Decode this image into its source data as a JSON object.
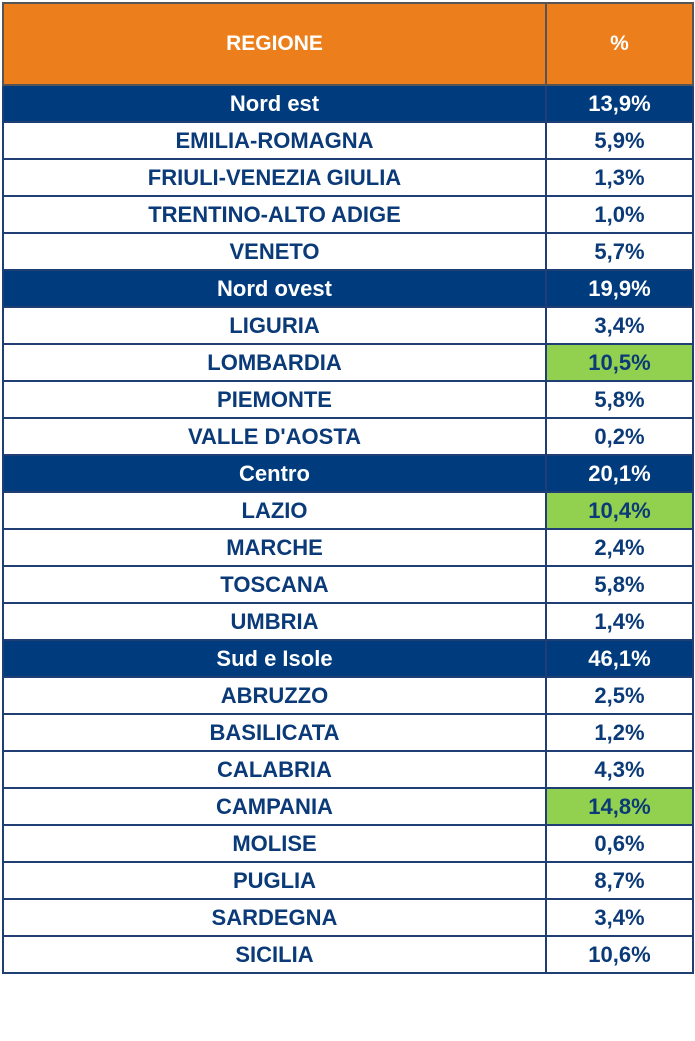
{
  "table": {
    "header": {
      "region": "REGIONE",
      "percent": "%"
    },
    "highlight_color": "#92d050",
    "header_color": "#ec7f1c",
    "group_color": "#003c7d",
    "text_color": "#0b3a78",
    "groups": [
      {
        "name": "Nord est",
        "percent": "13,9%",
        "regions": [
          {
            "name": "EMILIA-ROMAGNA",
            "percent": "5,9%",
            "highlight": false
          },
          {
            "name": "FRIULI-VENEZIA GIULIA",
            "percent": "1,3%",
            "highlight": false
          },
          {
            "name": "TRENTINO-ALTO ADIGE",
            "percent": "1,0%",
            "highlight": false
          },
          {
            "name": "VENETO",
            "percent": "5,7%",
            "highlight": false
          }
        ]
      },
      {
        "name": "Nord ovest",
        "percent": "19,9%",
        "regions": [
          {
            "name": "LIGURIA",
            "percent": "3,4%",
            "highlight": false
          },
          {
            "name": "LOMBARDIA",
            "percent": "10,5%",
            "highlight": true
          },
          {
            "name": "PIEMONTE",
            "percent": "5,8%",
            "highlight": false
          },
          {
            "name": "VALLE D'AOSTA",
            "percent": "0,2%",
            "highlight": false
          }
        ]
      },
      {
        "name": "Centro",
        "percent": "20,1%",
        "regions": [
          {
            "name": "LAZIO",
            "percent": "10,4%",
            "highlight": true
          },
          {
            "name": "MARCHE",
            "percent": "2,4%",
            "highlight": false
          },
          {
            "name": "TOSCANA",
            "percent": "5,8%",
            "highlight": false
          },
          {
            "name": "UMBRIA",
            "percent": "1,4%",
            "highlight": false
          }
        ]
      },
      {
        "name": "Sud e Isole",
        "percent": "46,1%",
        "regions": [
          {
            "name": "ABRUZZO",
            "percent": "2,5%",
            "highlight": false
          },
          {
            "name": "BASILICATA",
            "percent": "1,2%",
            "highlight": false
          },
          {
            "name": "CALABRIA",
            "percent": "4,3%",
            "highlight": false
          },
          {
            "name": "CAMPANIA",
            "percent": "14,8%",
            "highlight": true
          },
          {
            "name": "MOLISE",
            "percent": "0,6%",
            "highlight": false
          },
          {
            "name": "PUGLIA",
            "percent": "8,7%",
            "highlight": false
          },
          {
            "name": "SARDEGNA",
            "percent": "3,4%",
            "highlight": false
          },
          {
            "name": "SICILIA",
            "percent": "10,6%",
            "highlight": false
          }
        ]
      }
    ]
  }
}
